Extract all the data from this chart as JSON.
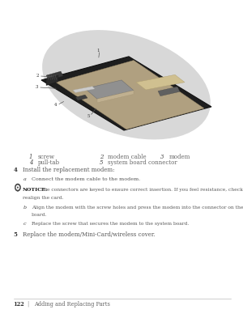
{
  "page_bg": "#ffffff",
  "fig_width": 3.0,
  "fig_height": 3.88,
  "dpi": 100,
  "legend_row1": [
    {
      "num": "1",
      "label": "screw"
    },
    {
      "num": "2",
      "label": "modem cable"
    },
    {
      "num": "3",
      "label": "modem"
    }
  ],
  "legend_row2": [
    {
      "num": "4",
      "label": "pull-tab"
    },
    {
      "num": "5",
      "label": "system board connector"
    }
  ],
  "footer_page": "122",
  "footer_section": "Adding and Replacing Parts",
  "text_color": "#555555",
  "dark_color": "#333333",
  "light_gray": "#cccccc",
  "notice_color": "#222222"
}
